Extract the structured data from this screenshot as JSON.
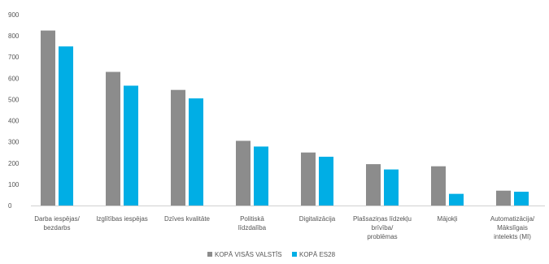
{
  "chart_data": {
    "type": "bar",
    "title": "",
    "xlabel": "",
    "ylabel": "",
    "ylim": [
      0,
      900
    ],
    "yticks": [
      0,
      100,
      200,
      300,
      400,
      500,
      600,
      700,
      800,
      900
    ],
    "grid": false,
    "legend_position": "bottom-center",
    "categories": [
      [
        "Darba iespējas/",
        "bezdarbs"
      ],
      [
        "Izglītības iespējas"
      ],
      [
        "Dzīves kvalitāte"
      ],
      [
        "Politiskā",
        "līdzdalība"
      ],
      [
        "Digitalizācija"
      ],
      [
        "Plašsaziņas līdzekļu",
        "brīvība/",
        "problēmas"
      ],
      [
        "Mājokļi"
      ],
      [
        "Automatizācija/",
        "Mākslīgais",
        "intelekts (MI)"
      ]
    ],
    "series": [
      {
        "name": "KOPĀ VISĀS VALSTĪS",
        "color": "#8c8c8c",
        "values": [
          825,
          630,
          545,
          305,
          250,
          195,
          185,
          70
        ]
      },
      {
        "name": "KOPĀ ES28",
        "color": "#00aee5",
        "values": [
          750,
          565,
          505,
          278,
          230,
          170,
          55,
          65
        ]
      }
    ]
  }
}
